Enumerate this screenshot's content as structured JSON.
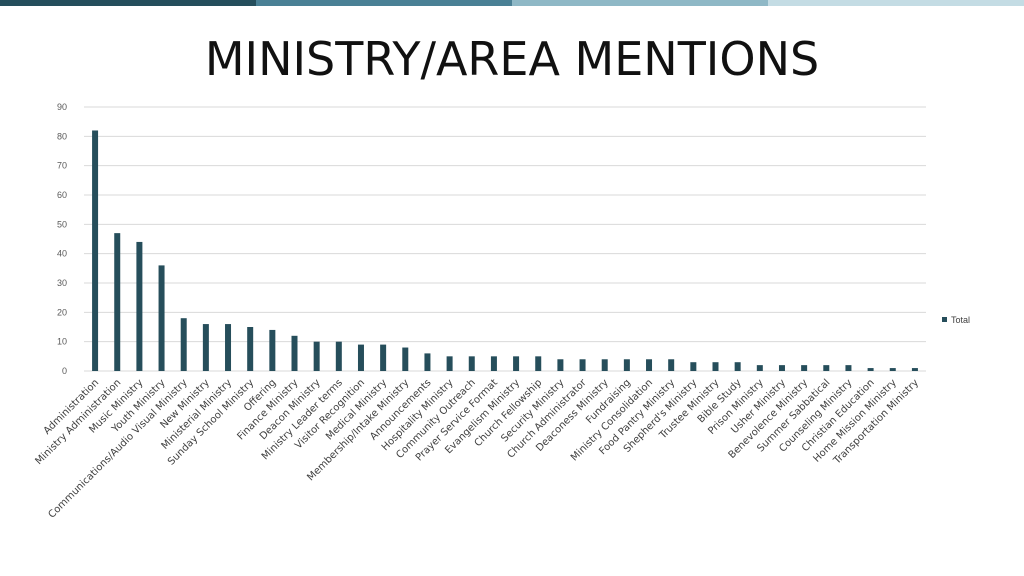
{
  "slide": {
    "title": "MINISTRY/AREA MENTIONS",
    "top_bar_colors": [
      "#254E5C",
      "#4A8095",
      "#8FB8C6",
      "#C4DCE4"
    ]
  },
  "chart_data": {
    "type": "bar",
    "title": "",
    "xlabel": "",
    "ylabel": "",
    "ylim": [
      0,
      90
    ],
    "yticks": [
      0,
      10,
      20,
      30,
      40,
      50,
      60,
      70,
      80,
      90
    ],
    "grid": true,
    "legend_position": "right",
    "bar_color": "#264E5B",
    "grid_color": "#D9D9D9",
    "categories": [
      "Administration",
      "Ministry Administration",
      "Music Ministry",
      "Youth Ministry",
      "Communications/Audio Visual Ministry",
      "New Ministry",
      "Ministerial Ministry",
      "Sunday School Ministry",
      "Offering",
      "Finance Ministry",
      "Deacon Ministry",
      "Ministry Leader terms",
      "Visitor Recognition",
      "Medical Ministry",
      "Membership/Intake Ministry",
      "Announcements",
      "Hospitality Ministry",
      "Community Outreach",
      "Prayer Service Format",
      "Evangelism Ministry",
      "Church Fellowship",
      "Security Ministry",
      "Church Administrator",
      "Deaconess Ministry",
      "Fundraising",
      "Ministry Consolidation",
      "Food Pantry Ministry",
      "Shepherd's Ministry",
      "Trustee Ministry",
      "Bible Study",
      "Prison Ministry",
      "Usher Ministry",
      "Benevolence Ministry",
      "Summer Sabbatical",
      "Counseling Ministry",
      "Christian Education",
      "Home Mission Ministry",
      "Transportation Ministry"
    ],
    "series": [
      {
        "name": "Total",
        "values": [
          82,
          47,
          44,
          36,
          18,
          16,
          16,
          15,
          14,
          12,
          10,
          10,
          9,
          9,
          8,
          6,
          5,
          5,
          5,
          5,
          5,
          4,
          4,
          4,
          4,
          4,
          4,
          3,
          3,
          3,
          2,
          2,
          2,
          2,
          2,
          1,
          1,
          1
        ]
      }
    ]
  }
}
